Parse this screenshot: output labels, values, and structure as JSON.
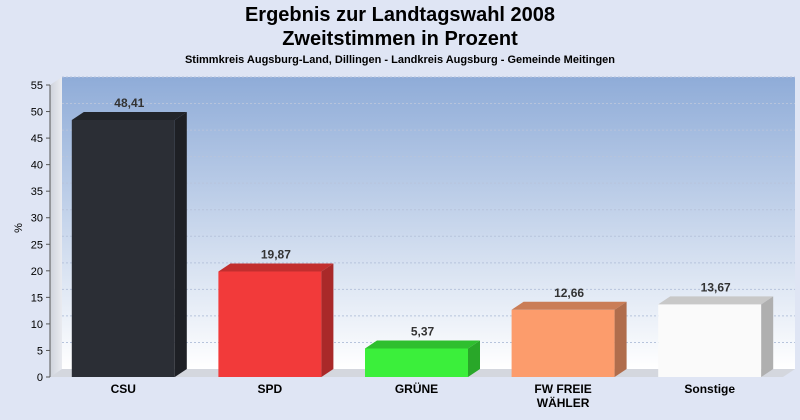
{
  "chart_data": {
    "type": "bar",
    "title": "Ergebnis zur Landtagswahl 2008",
    "subtitle_line": "Zweitstimmen in Prozent",
    "subtitle": "Stimmkreis Augsburg-Land, Dillingen - Landkreis Augsburg - Gemeinde Meitingen",
    "ylabel": "%",
    "xlabel": "",
    "ylim": [
      0,
      55
    ],
    "ytick_step": 5,
    "grid": true,
    "categories": [
      "CSU",
      "SPD",
      "GRÜNE",
      "FW FREIE|WÄHLER",
      "Sonstige"
    ],
    "values": [
      48.41,
      19.87,
      5.37,
      12.66,
      13.67
    ],
    "value_labels": [
      "48,41",
      "19,87",
      "5,37",
      "12,66",
      "13,67"
    ],
    "colors": [
      "#2b2e35",
      "#f23a3a",
      "#3bef3b",
      "#fc9c6c",
      "#fafafa"
    ]
  }
}
